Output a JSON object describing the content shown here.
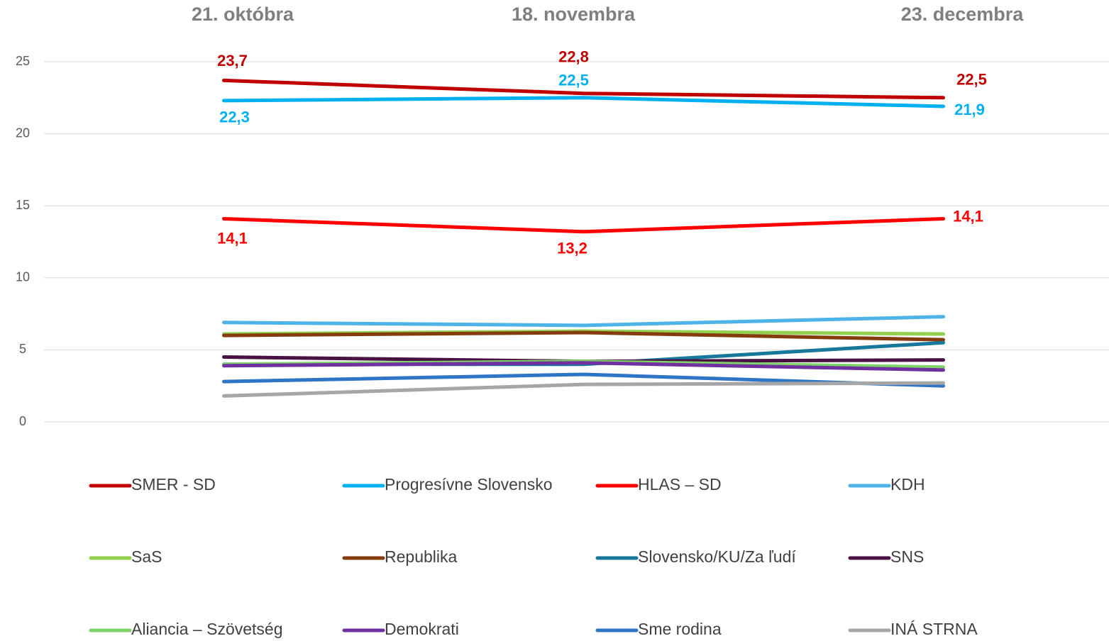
{
  "chart_data": {
    "type": "line",
    "categories": [
      "21. októbra",
      "18. novembra",
      "23. decembra"
    ],
    "ylim": [
      0,
      25
    ],
    "yticks": [
      0,
      5,
      10,
      15,
      20,
      25
    ],
    "grid": true,
    "series": [
      {
        "name": "SMER - SD",
        "color": "#c00000",
        "values": [
          23.7,
          22.8,
          22.5
        ],
        "value_labels": [
          "23,7",
          "22,8",
          "22,5"
        ]
      },
      {
        "name": "Progresívne Slovensko",
        "color": "#00b0f0",
        "values": [
          22.3,
          22.5,
          21.9
        ],
        "value_labels": [
          "22,3",
          "22,5",
          "21,9"
        ]
      },
      {
        "name": "HLAS – SD",
        "color": "#ff0000",
        "values": [
          14.1,
          13.2,
          14.1
        ],
        "value_labels": [
          "14,1",
          "13,2",
          "14,1"
        ]
      },
      {
        "name": "KDH",
        "color": "#4eb3e6",
        "values": [
          6.9,
          6.7,
          7.3
        ]
      },
      {
        "name": "SaS",
        "color": "#92d050",
        "values": [
          6.1,
          6.3,
          6.1
        ]
      },
      {
        "name": "Republika",
        "color": "#843c0c",
        "values": [
          6.0,
          6.2,
          5.7
        ]
      },
      {
        "name": "Slovensko/KU/Za ľudí",
        "color": "#17789c",
        "values": [
          4.0,
          4.0,
          5.5
        ]
      },
      {
        "name": "SNS",
        "color": "#4a1242",
        "values": [
          4.5,
          4.2,
          4.3
        ]
      },
      {
        "name": "Aliancia – Szövetség",
        "color": "#7ed36a",
        "values": [
          4.0,
          4.2,
          3.8
        ]
      },
      {
        "name": "Demokrati",
        "color": "#7030a0",
        "values": [
          3.9,
          4.1,
          3.6
        ]
      },
      {
        "name": "Sme rodina",
        "color": "#2e75c6",
        "values": [
          2.8,
          3.3,
          2.5
        ]
      },
      {
        "name": "INÁ STRNA",
        "color": "#a6a6a6",
        "values": [
          1.8,
          2.6,
          2.7
        ]
      }
    ]
  }
}
